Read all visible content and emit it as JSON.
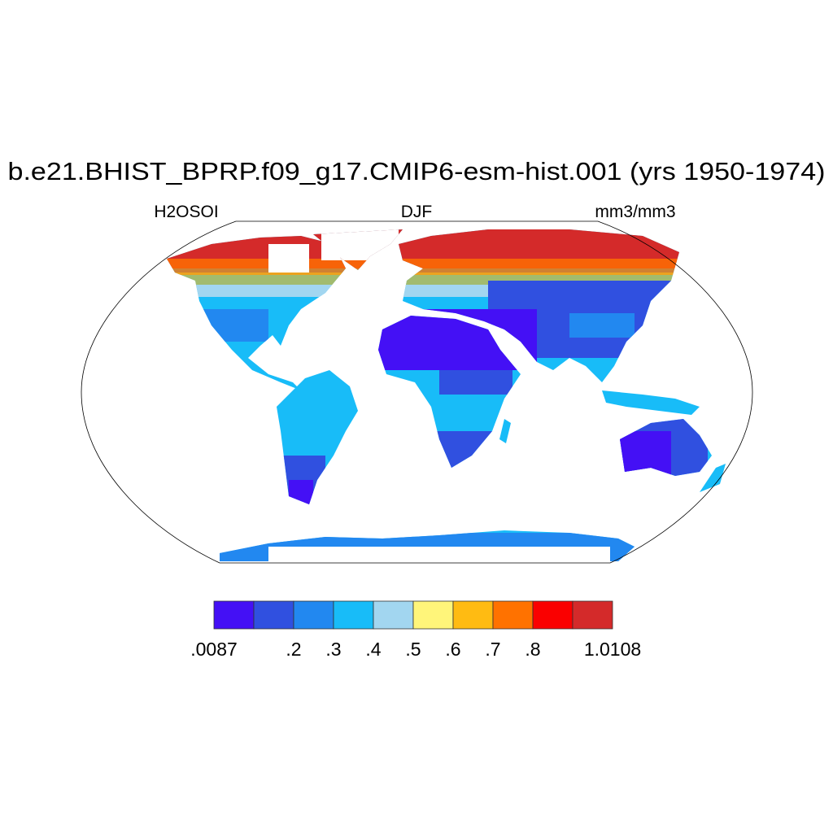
{
  "title": "b.e21.BHIST_BPRP.f09_g17.CMIP6-esm-hist.001 (yrs 1950-1974)",
  "left_string": "H2OSOI",
  "center_string": "DJF",
  "right_string": "mm3/mm3",
  "colorbar": {
    "colors": [
      "#4410f5",
      "#3050e0",
      "#2288f0",
      "#18bcf8",
      "#a2d6f0",
      "#fff57a",
      "#ffbb12",
      "#ff7200",
      "#fa0000",
      "#d42a2a"
    ],
    "labels": [
      {
        "boundary": 0,
        "text": ".0087"
      },
      {
        "boundary": 2,
        "text": ".2"
      },
      {
        "boundary": 3,
        "text": ".3"
      },
      {
        "boundary": 4,
        "text": ".4"
      },
      {
        "boundary": 5,
        "text": ".5"
      },
      {
        "boundary": 6,
        "text": ".6"
      },
      {
        "boundary": 7,
        "text": ".7"
      },
      {
        "boundary": 8,
        "text": ".8"
      },
      {
        "boundary": 10,
        "text": "1.0108"
      }
    ]
  }
}
